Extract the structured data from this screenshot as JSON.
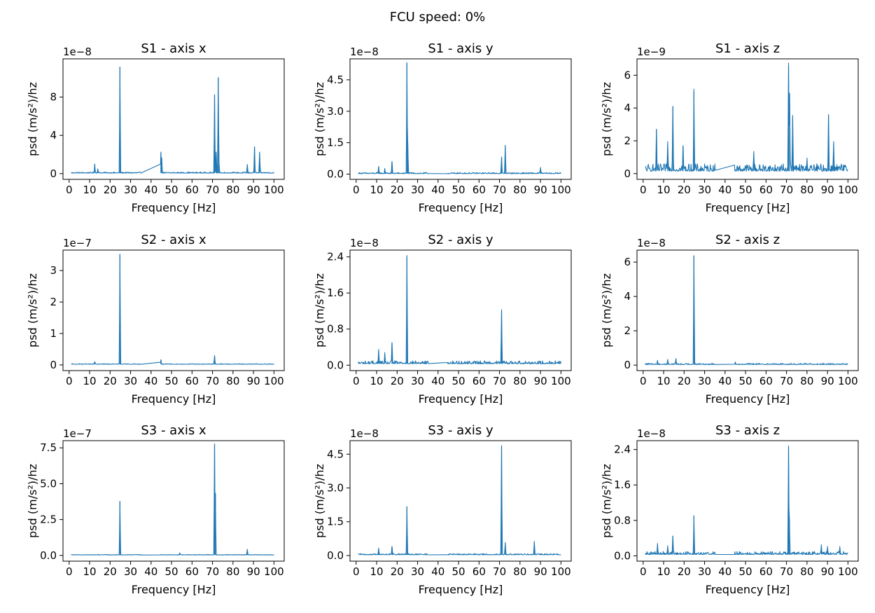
{
  "suptitle": "FCU speed: 0%",
  "series_color": "#1f77b4",
  "chart_data": [
    {
      "type": "line",
      "title": "S1 - axis x",
      "xlabel": "Frequency [Hz]",
      "ylabel": "psd (m/s²)/hz",
      "scale_label": "1e−8",
      "xlim": [
        -3,
        105
      ],
      "ylim": [
        -0.6,
        12
      ],
      "xticks": [
        0,
        10,
        20,
        30,
        40,
        50,
        60,
        70,
        80,
        90,
        100
      ],
      "yticks": [
        0,
        4,
        8
      ],
      "ytick_labels": [
        "0",
        "4",
        "8"
      ],
      "baseline": 0.05,
      "noise": 0.12,
      "peaks": [
        {
          "x": 12.5,
          "y": 1.0
        },
        {
          "x": 14,
          "y": 0.45
        },
        {
          "x": 24.8,
          "y": 11.1
        },
        {
          "x": 44.8,
          "y": 2.2
        },
        {
          "x": 45.2,
          "y": 1.6
        },
        {
          "x": 71,
          "y": 8.2
        },
        {
          "x": 71.8,
          "y": 2.2
        },
        {
          "x": 72.8,
          "y": 10.0
        },
        {
          "x": 73.2,
          "y": 1.0
        },
        {
          "x": 87,
          "y": 0.9
        },
        {
          "x": 90.5,
          "y": 2.8
        },
        {
          "x": 93,
          "y": 2.2
        }
      ]
    },
    {
      "type": "line",
      "title": "S1 - axis y",
      "xlabel": "Frequency [Hz]",
      "ylabel": "psd (m/s²)/hz",
      "scale_label": "1e−8",
      "xlim": [
        -3,
        105
      ],
      "ylim": [
        -0.25,
        5.5
      ],
      "xticks": [
        0,
        10,
        20,
        30,
        40,
        50,
        60,
        70,
        80,
        90,
        100
      ],
      "yticks": [
        0,
        1.5,
        3.0,
        4.5
      ],
      "ytick_labels": [
        "0.0",
        "1.5",
        "3.0",
        "4.5"
      ],
      "baseline": 0.02,
      "noise": 0.06,
      "peaks": [
        {
          "x": 11,
          "y": 0.35
        },
        {
          "x": 14,
          "y": 0.25
        },
        {
          "x": 17.5,
          "y": 0.6
        },
        {
          "x": 24.8,
          "y": 5.3
        },
        {
          "x": 25.2,
          "y": 1.5
        },
        {
          "x": 71,
          "y": 0.8
        },
        {
          "x": 72.8,
          "y": 1.35
        },
        {
          "x": 90,
          "y": 0.3
        }
      ]
    },
    {
      "type": "line",
      "title": "S1 - axis z",
      "xlabel": "Frequency [Hz]",
      "ylabel": "psd (m/s²)/hz",
      "scale_label": "1e−9",
      "xlim": [
        -3,
        105
      ],
      "ylim": [
        -0.35,
        7.0
      ],
      "xticks": [
        0,
        10,
        20,
        30,
        40,
        50,
        60,
        70,
        80,
        90,
        100
      ],
      "yticks": [
        0,
        2,
        4,
        6
      ],
      "ytick_labels": [
        "0",
        "2",
        "4",
        "6"
      ],
      "baseline": 0.15,
      "noise": 0.45,
      "peaks": [
        {
          "x": 6.5,
          "y": 2.7
        },
        {
          "x": 12,
          "y": 1.8
        },
        {
          "x": 14.5,
          "y": 4.1
        },
        {
          "x": 19.5,
          "y": 1.7
        },
        {
          "x": 24.8,
          "y": 5.0
        },
        {
          "x": 54,
          "y": 1.2
        },
        {
          "x": 71,
          "y": 6.6
        },
        {
          "x": 71.5,
          "y": 4.9
        },
        {
          "x": 73,
          "y": 3.4
        },
        {
          "x": 80,
          "y": 0.8
        },
        {
          "x": 90.5,
          "y": 3.6
        },
        {
          "x": 93,
          "y": 1.8
        }
      ]
    },
    {
      "type": "line",
      "title": "S2 - axis x",
      "xlabel": "Frequency [Hz]",
      "ylabel": "psd (m/s²)/hz",
      "scale_label": "1e−7",
      "xlim": [
        -3,
        105
      ],
      "ylim": [
        -0.18,
        3.65
      ],
      "xticks": [
        0,
        10,
        20,
        30,
        40,
        50,
        60,
        70,
        80,
        90,
        100
      ],
      "yticks": [
        0,
        1,
        2,
        3
      ],
      "ytick_labels": [
        "0",
        "1",
        "2",
        "3"
      ],
      "baseline": 0.02,
      "noise": 0.02,
      "peaks": [
        {
          "x": 12.5,
          "y": 0.1
        },
        {
          "x": 24.8,
          "y": 3.5
        },
        {
          "x": 44.8,
          "y": 0.15
        },
        {
          "x": 71,
          "y": 0.28
        }
      ]
    },
    {
      "type": "line",
      "title": "S2 - axis y",
      "xlabel": "Frequency [Hz]",
      "ylabel": "psd (m/s²)/hz",
      "scale_label": "1e−8",
      "xlim": [
        -3,
        105
      ],
      "ylim": [
        -0.12,
        2.55
      ],
      "xticks": [
        0,
        10,
        20,
        30,
        40,
        50,
        60,
        70,
        80,
        90,
        100
      ],
      "yticks": [
        0,
        0.8,
        1.6,
        2.4
      ],
      "ytick_labels": [
        "0.0",
        "0.8",
        "1.6",
        "2.4"
      ],
      "baseline": 0.03,
      "noise": 0.07,
      "peaks": [
        {
          "x": 11,
          "y": 0.32
        },
        {
          "x": 14,
          "y": 0.25
        },
        {
          "x": 17.5,
          "y": 0.5
        },
        {
          "x": 24.8,
          "y": 2.4
        },
        {
          "x": 71,
          "y": 1.2
        }
      ]
    },
    {
      "type": "line",
      "title": "S2 - axis z",
      "xlabel": "Frequency [Hz]",
      "ylabel": "psd (m/s²)/hz",
      "scale_label": "1e−8",
      "xlim": [
        -3,
        105
      ],
      "ylim": [
        -0.32,
        6.7
      ],
      "xticks": [
        0,
        10,
        20,
        30,
        40,
        50,
        60,
        70,
        80,
        90,
        100
      ],
      "yticks": [
        0,
        2,
        4,
        6
      ],
      "ytick_labels": [
        "0",
        "2",
        "4",
        "6"
      ],
      "baseline": 0.03,
      "noise": 0.08,
      "peaks": [
        {
          "x": 7,
          "y": 0.25
        },
        {
          "x": 12,
          "y": 0.3
        },
        {
          "x": 16,
          "y": 0.35
        },
        {
          "x": 24.8,
          "y": 6.35
        },
        {
          "x": 45,
          "y": 0.15
        }
      ]
    },
    {
      "type": "line",
      "title": "S3 - axis x",
      "xlabel": "Frequency [Hz]",
      "ylabel": "psd (m/s²)/hz",
      "scale_label": "1e−7",
      "xlim": [
        -3,
        105
      ],
      "ylim": [
        -0.4,
        8.0
      ],
      "xticks": [
        0,
        10,
        20,
        30,
        40,
        50,
        60,
        70,
        80,
        90,
        100
      ],
      "yticks": [
        0,
        2.5,
        5.0,
        7.5
      ],
      "ytick_labels": [
        "0.0",
        "2.5",
        "5.0",
        "7.5"
      ],
      "baseline": 0.03,
      "noise": 0.04,
      "peaks": [
        {
          "x": 24.8,
          "y": 3.75
        },
        {
          "x": 54,
          "y": 0.15
        },
        {
          "x": 71,
          "y": 7.75
        },
        {
          "x": 71.4,
          "y": 4.3
        },
        {
          "x": 87,
          "y": 0.4
        }
      ]
    },
    {
      "type": "line",
      "title": "S3 - axis y",
      "xlabel": "Frequency [Hz]",
      "ylabel": "psd (m/s²)/hz",
      "scale_label": "1e−8",
      "xlim": [
        -3,
        105
      ],
      "ylim": [
        -0.25,
        5.1
      ],
      "xticks": [
        0,
        10,
        20,
        30,
        40,
        50,
        60,
        70,
        80,
        90,
        100
      ],
      "yticks": [
        0,
        1.5,
        3.0,
        4.5
      ],
      "ytick_labels": [
        "0.0",
        "1.5",
        "3.0",
        "4.5"
      ],
      "baseline": 0.03,
      "noise": 0.06,
      "peaks": [
        {
          "x": 11,
          "y": 0.3
        },
        {
          "x": 17.5,
          "y": 0.4
        },
        {
          "x": 24.8,
          "y": 2.15
        },
        {
          "x": 71,
          "y": 4.85
        },
        {
          "x": 72.8,
          "y": 0.55
        },
        {
          "x": 87,
          "y": 0.6
        }
      ]
    },
    {
      "type": "line",
      "title": "S3 - axis z",
      "xlabel": "Frequency [Hz]",
      "ylabel": "psd (m/s²)/hz",
      "scale_label": "1e−8",
      "xlim": [
        -3,
        105
      ],
      "ylim": [
        -0.12,
        2.6
      ],
      "xticks": [
        0,
        10,
        20,
        30,
        40,
        50,
        60,
        70,
        80,
        90,
        100
      ],
      "yticks": [
        0,
        0.8,
        1.6,
        2.4
      ],
      "ytick_labels": [
        "0.0",
        "0.8",
        "1.6",
        "2.4"
      ],
      "baseline": 0.03,
      "noise": 0.07,
      "peaks": [
        {
          "x": 7,
          "y": 0.25
        },
        {
          "x": 12,
          "y": 0.2
        },
        {
          "x": 14.5,
          "y": 0.45
        },
        {
          "x": 24.8,
          "y": 0.88
        },
        {
          "x": 71,
          "y": 2.45
        },
        {
          "x": 71.4,
          "y": 0.85
        },
        {
          "x": 87,
          "y": 0.22
        },
        {
          "x": 90,
          "y": 0.18
        },
        {
          "x": 96,
          "y": 0.18
        }
      ]
    }
  ]
}
